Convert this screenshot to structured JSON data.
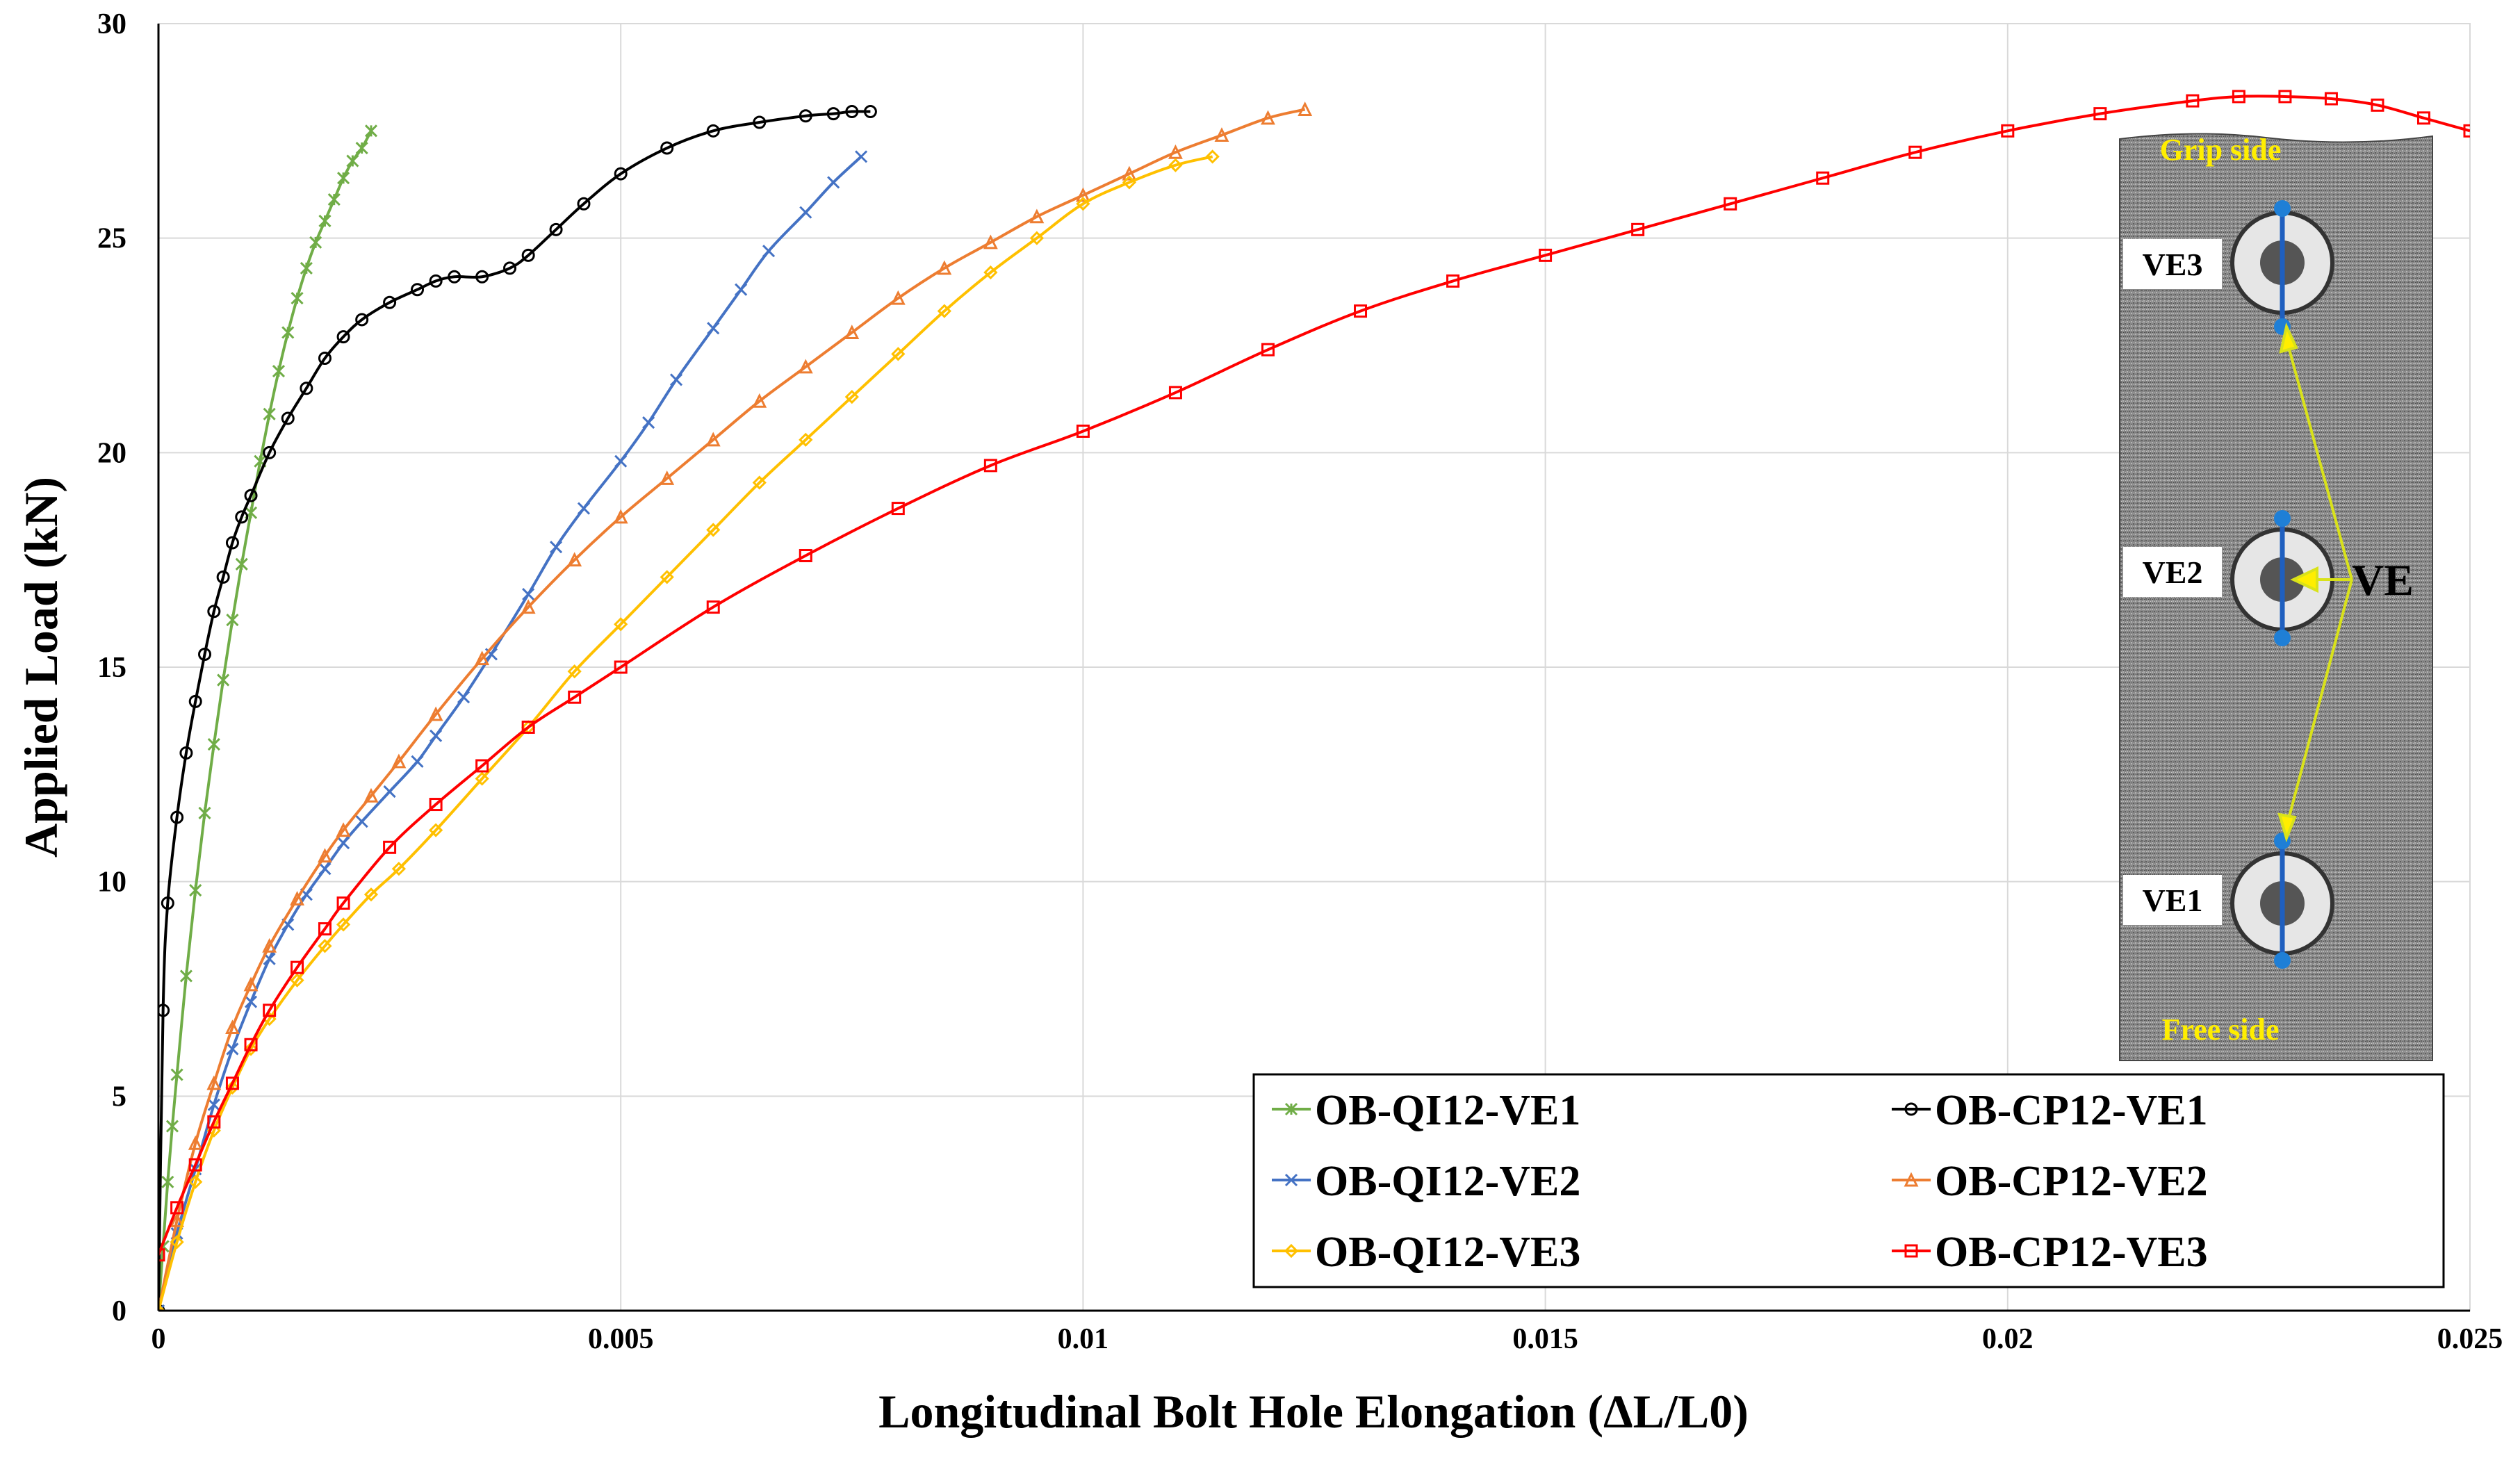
{
  "chart_data": {
    "type": "line",
    "title": "",
    "xlabel": "Longitudinal Bolt Hole Elongation (ΔL/L0)",
    "ylabel": "Applied Load (kN)",
    "xlim": [
      0,
      0.025
    ],
    "ylim": [
      0,
      30
    ],
    "x_ticks": [
      0,
      0.005,
      0.01,
      0.015,
      0.02,
      0.025
    ],
    "x_tick_labels": [
      "0",
      "0.005",
      "0.01",
      "0.015",
      "0.02",
      "0.025"
    ],
    "y_ticks": [
      0,
      5,
      10,
      15,
      20,
      25,
      30
    ],
    "y_tick_labels": [
      "0",
      "5",
      "10",
      "15",
      "20",
      "25",
      "30"
    ],
    "grid": true,
    "legend_position": "bottom-right",
    "series": [
      {
        "name": "OB-QI12-VE1",
        "color": "#70ad47",
        "marker": "star",
        "x": [
          0,
          5e-05,
          0.0001,
          0.00015,
          0.0002,
          0.0003,
          0.0004,
          0.0005,
          0.0006,
          0.0007,
          0.0008,
          0.0009,
          0.001,
          0.0011,
          0.0012,
          0.0013,
          0.0014,
          0.0015,
          0.0016,
          0.0017,
          0.0018,
          0.0019,
          0.002,
          0.0021,
          0.0022,
          0.0023
        ],
        "y": [
          0,
          1.5,
          3.0,
          4.3,
          5.5,
          7.8,
          9.8,
          11.6,
          13.2,
          14.7,
          16.1,
          17.4,
          18.6,
          19.8,
          20.9,
          21.9,
          22.8,
          23.6,
          24.3,
          24.9,
          25.4,
          25.9,
          26.4,
          26.8,
          27.1,
          27.5
        ]
      },
      {
        "name": "OB-CP12-VE1",
        "color": "#000000",
        "marker": "circle",
        "x": [
          0,
          5e-05,
          0.0001,
          0.0002,
          0.0003,
          0.0004,
          0.0005,
          0.0006,
          0.0007,
          0.0008,
          0.0009,
          0.001,
          0.0012,
          0.0014,
          0.0016,
          0.0018,
          0.002,
          0.0022,
          0.0025,
          0.0028,
          0.003,
          0.0032,
          0.0035,
          0.0038,
          0.004,
          0.0043,
          0.0046,
          0.005,
          0.0055,
          0.006,
          0.0065,
          0.007,
          0.0073,
          0.0075,
          0.0077
        ],
        "y": [
          0,
          7.0,
          9.5,
          11.5,
          13.0,
          14.2,
          15.3,
          16.3,
          17.1,
          17.9,
          18.5,
          19.0,
          20.0,
          20.8,
          21.5,
          22.2,
          22.7,
          23.1,
          23.5,
          23.8,
          24.0,
          24.1,
          24.1,
          24.3,
          24.6,
          25.2,
          25.8,
          26.5,
          27.1,
          27.5,
          27.7,
          27.85,
          27.9,
          27.95,
          27.95
        ]
      },
      {
        "name": "OB-QI12-VE2",
        "color": "#4472c4",
        "marker": "x",
        "x": [
          0,
          0.0002,
          0.0004,
          0.0006,
          0.0008,
          0.001,
          0.0012,
          0.0014,
          0.0016,
          0.0018,
          0.002,
          0.0022,
          0.0025,
          0.0028,
          0.003,
          0.0033,
          0.0036,
          0.004,
          0.0043,
          0.0046,
          0.005,
          0.0053,
          0.0056,
          0.006,
          0.0063,
          0.0066,
          0.007,
          0.0073,
          0.0076
        ],
        "y": [
          0,
          1.8,
          3.3,
          4.8,
          6.1,
          7.2,
          8.2,
          9.0,
          9.7,
          10.3,
          10.9,
          11.4,
          12.1,
          12.8,
          13.4,
          14.3,
          15.3,
          16.7,
          17.8,
          18.7,
          19.8,
          20.7,
          21.7,
          22.9,
          23.8,
          24.7,
          25.6,
          26.3,
          26.9
        ]
      },
      {
        "name": "OB-CP12-VE2",
        "color": "#ed7d31",
        "marker": "triangle",
        "x": [
          0,
          0.0002,
          0.0004,
          0.0006,
          0.0008,
          0.001,
          0.0012,
          0.0015,
          0.0018,
          0.002,
          0.0023,
          0.0026,
          0.003,
          0.0035,
          0.004,
          0.0045,
          0.005,
          0.0055,
          0.006,
          0.0065,
          0.007,
          0.0075,
          0.008,
          0.0085,
          0.009,
          0.0095,
          0.01,
          0.0105,
          0.011,
          0.0115,
          0.012,
          0.0124
        ],
        "y": [
          0,
          2.1,
          3.9,
          5.3,
          6.6,
          7.6,
          8.5,
          9.6,
          10.6,
          11.2,
          12.0,
          12.8,
          13.9,
          15.2,
          16.4,
          17.5,
          18.5,
          19.4,
          20.3,
          21.2,
          22.0,
          22.8,
          23.6,
          24.3,
          24.9,
          25.5,
          26.0,
          26.5,
          27.0,
          27.4,
          27.8,
          28.0
        ]
      },
      {
        "name": "OB-QI12-VE3",
        "color": "#ffc000",
        "marker": "diamond",
        "x": [
          0,
          0.0002,
          0.0004,
          0.0006,
          0.0008,
          0.001,
          0.0012,
          0.0015,
          0.0018,
          0.002,
          0.0023,
          0.0026,
          0.003,
          0.0035,
          0.004,
          0.0045,
          0.005,
          0.0055,
          0.006,
          0.0065,
          0.007,
          0.0075,
          0.008,
          0.0085,
          0.009,
          0.0095,
          0.01,
          0.0105,
          0.011,
          0.0114
        ],
        "y": [
          0,
          1.6,
          3.0,
          4.2,
          5.2,
          6.1,
          6.8,
          7.7,
          8.5,
          9.0,
          9.7,
          10.3,
          11.2,
          12.4,
          13.6,
          14.9,
          16.0,
          17.1,
          18.2,
          19.3,
          20.3,
          21.3,
          22.3,
          23.3,
          24.2,
          25.0,
          25.8,
          26.3,
          26.7,
          26.9
        ]
      },
      {
        "name": "OB-CP12-VE3",
        "color": "#ff0000",
        "marker": "square",
        "x": [
          0,
          0.0002,
          0.0004,
          0.0006,
          0.0008,
          0.001,
          0.0012,
          0.0015,
          0.0018,
          0.002,
          0.0025,
          0.003,
          0.0035,
          0.004,
          0.0045,
          0.005,
          0.006,
          0.007,
          0.008,
          0.009,
          0.01,
          0.011,
          0.012,
          0.013,
          0.014,
          0.015,
          0.016,
          0.017,
          0.018,
          0.019,
          0.02,
          0.021,
          0.022,
          0.0225,
          0.023,
          0.0235,
          0.024,
          0.0245,
          0.025
        ],
        "y": [
          1.3,
          2.4,
          3.4,
          4.4,
          5.3,
          6.2,
          7.0,
          8.0,
          8.9,
          9.5,
          10.8,
          11.8,
          12.7,
          13.6,
          14.3,
          15.0,
          16.4,
          17.6,
          18.7,
          19.7,
          20.5,
          21.4,
          22.4,
          23.3,
          24.0,
          24.6,
          25.2,
          25.8,
          26.4,
          27.0,
          27.5,
          27.9,
          28.2,
          28.3,
          28.3,
          28.25,
          28.1,
          27.8,
          27.5
        ]
      }
    ]
  },
  "legend": {
    "items": [
      {
        "label": "OB-QI12-VE1",
        "color": "#70ad47",
        "marker": "star"
      },
      {
        "label": "OB-CP12-VE1",
        "color": "#000000",
        "marker": "circle"
      },
      {
        "label": "OB-QI12-VE2",
        "color": "#4472c4",
        "marker": "x"
      },
      {
        "label": "OB-CP12-VE2",
        "color": "#ed7d31",
        "marker": "triangle"
      },
      {
        "label": "OB-QI12-VE3",
        "color": "#ffc000",
        "marker": "diamond"
      },
      {
        "label": "OB-CP12-VE3",
        "color": "#ff0000",
        "marker": "square"
      }
    ]
  },
  "inset": {
    "grip_label": "Grip side",
    "free_label": "Free side",
    "bolt_labels": [
      "VE3",
      "VE2",
      "VE1"
    ],
    "ve_label": "VE"
  }
}
